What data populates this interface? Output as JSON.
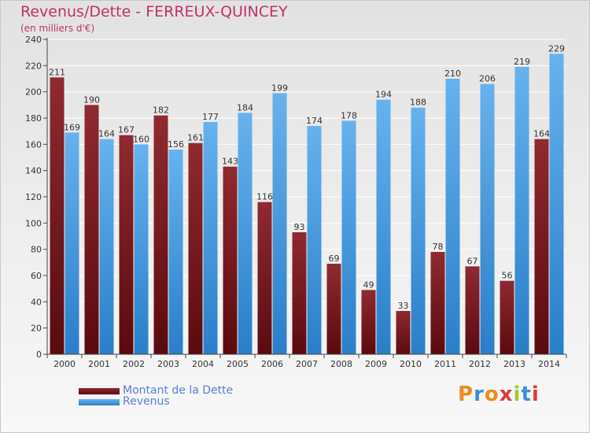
{
  "header": {
    "title": "Revenus/Dette - FERREUX-QUINCEY",
    "subtitle": "(en milliers d'€)"
  },
  "legend": [
    {
      "label": "Montant de la Dette",
      "color": "#6e0f14"
    },
    {
      "label": "Revenus",
      "color": "#3d94e0"
    }
  ],
  "logo": {
    "letters": [
      "P",
      "r",
      "o",
      "x",
      "i",
      "t",
      "i"
    ],
    "colors": [
      "#f08a1c",
      "#3a8fd8",
      "#f08a1c",
      "#e03a3a",
      "#9acd32",
      "#3a8fd8",
      "#e03a3a"
    ]
  },
  "colors": {
    "dette_dark": "#5a0a0e",
    "dette_light": "#8f2a30",
    "revenus_dark": "#2a7ec8",
    "revenus_light": "#66b2ee"
  },
  "chart_data": {
    "type": "bar",
    "categories": [
      "2000",
      "2001",
      "2002",
      "2003",
      "2004",
      "2005",
      "2006",
      "2007",
      "2008",
      "2009",
      "2010",
      "2011",
      "2012",
      "2013",
      "2014"
    ],
    "series": [
      {
        "name": "Montant de la Dette",
        "values": [
          211,
          190,
          167,
          182,
          161,
          143,
          116,
          93,
          69,
          49,
          33,
          78,
          67,
          56,
          164
        ]
      },
      {
        "name": "Revenus",
        "values": [
          169,
          164,
          160,
          156,
          177,
          184,
          199,
          174,
          178,
          194,
          188,
          210,
          206,
          219,
          229
        ]
      }
    ],
    "y_ticks": [
      "0",
      "20",
      "40",
      "60",
      "80",
      "100",
      "120",
      "140",
      "160",
      "180",
      "200",
      "220",
      "240"
    ],
    "ylim": [
      0,
      240
    ],
    "grid": true,
    "legend_position": "bottom-left"
  }
}
